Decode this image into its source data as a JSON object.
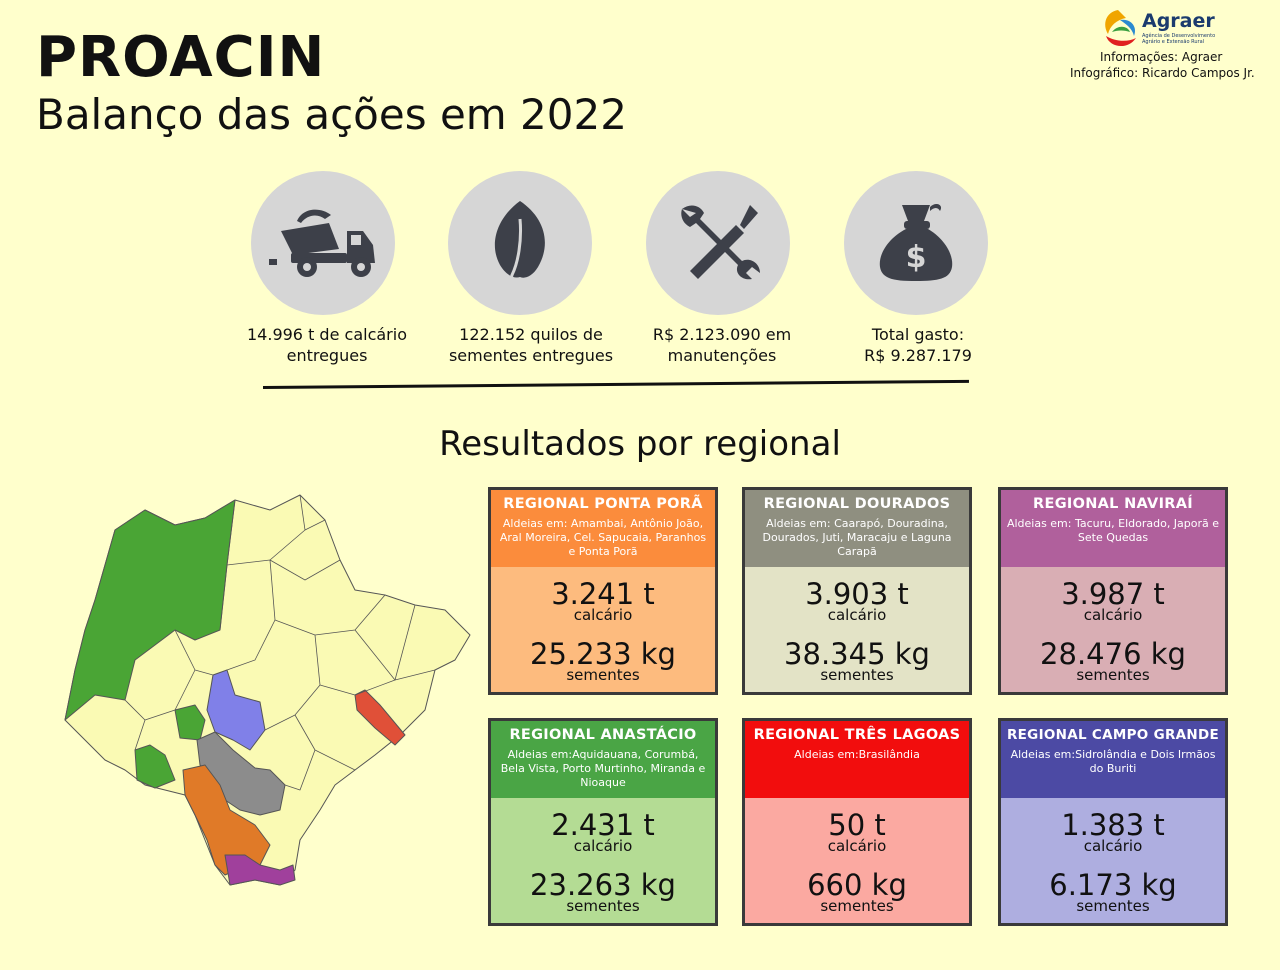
{
  "header": {
    "title": "PROACIN",
    "subtitle": "Balanço das ações em 2022"
  },
  "logo": {
    "name": "Agraer",
    "tagline": "Agência de Desenvolvimento Agrário e Extensão Rural"
  },
  "credits": {
    "info": "Informações: Agraer",
    "infographic": "Infográfico: Ricardo Campos Jr."
  },
  "stats": [
    {
      "icon": "truck-icon",
      "line1": "14.996 t de calcário",
      "line2": "entregues"
    },
    {
      "icon": "leaf-icon",
      "line1": "122.152 quilos de",
      "line2": "sementes entregues"
    },
    {
      "icon": "tools-icon",
      "line1": "R$ 2.123.090 em",
      "line2": "manutenções"
    },
    {
      "icon": "money-bag-icon",
      "line1": "Total gasto:",
      "line2": "R$ 9.287.179"
    }
  ],
  "results_heading": "Resultados por regional",
  "regionals": [
    {
      "name": "REGIONAL PONTA PORÃ",
      "villages": "Aldeias em: Amambai, Antônio João, Aral Moreira, Cel. Sapucaia, Paranhos e Ponta Porã",
      "limestone": "3.241 t",
      "limestone_unit": "calcário",
      "seeds": "25.233 kg",
      "seeds_unit": "sementes",
      "head_color": "#fb8c3c",
      "body_color": "#fdbb7e"
    },
    {
      "name": "REGIONAL DOURADOS",
      "villages": "Aldeias em: Caarapó, Douradina, Dourados, Juti, Maracaju e Laguna Carapã",
      "limestone": "3.903 t",
      "limestone_unit": "calcário",
      "seeds": "38.345 kg",
      "seeds_unit": "sementes",
      "head_color": "#8f8f80",
      "body_color": "#e3e3c6"
    },
    {
      "name": "REGIONAL NAVIRAÍ",
      "villages": "Aldeias em: Tacuru, Eldorado, Japorã e Sete Quedas",
      "limestone": "3.987 t",
      "limestone_unit": "calcário",
      "seeds": "28.476 kg",
      "seeds_unit": "sementes",
      "head_color": "#b0609c",
      "body_color": "#d9aeb4"
    },
    {
      "name": "REGIONAL ANASTÁCIO",
      "villages": "Aldeias em:Aquidauana, Corumbá, Bela Vista, Porto Murtinho, Miranda e Nioaque",
      "limestone": "2.431 t",
      "limestone_unit": "calcário",
      "seeds": "23.263 kg",
      "seeds_unit": "sementes",
      "head_color": "#4aa545",
      "body_color": "#b4dc94"
    },
    {
      "name": "REGIONAL TRÊS LAGOAS",
      "villages": "Aldeias em:Brasilândia",
      "limestone": "50 t",
      "limestone_unit": "calcário",
      "seeds": "660 kg",
      "seeds_unit": "sementes",
      "head_color": "#f20d0d",
      "body_color": "#fba9a1"
    },
    {
      "name": "REGIONAL CAMPO GRANDE",
      "villages": "Aldeias em:Sidrolândia e Dois Irmãos do Buriti",
      "limestone": "1.383 t",
      "limestone_unit": "calcário",
      "seeds": "6.173 kg",
      "seeds_unit": "sementes",
      "head_color": "#4c4aa4",
      "body_color": "#aeaee0"
    }
  ],
  "map": {
    "base_color": "#fafab4",
    "border_color": "#555555",
    "regions": {
      "anastacio": "#4aa535",
      "campo_grande": "#8080e8",
      "dourados": "#8c8c8c",
      "ponta_pora": "#e07a28",
      "navirai": "#a0409c",
      "tres_lagoas": "#e05038"
    }
  }
}
